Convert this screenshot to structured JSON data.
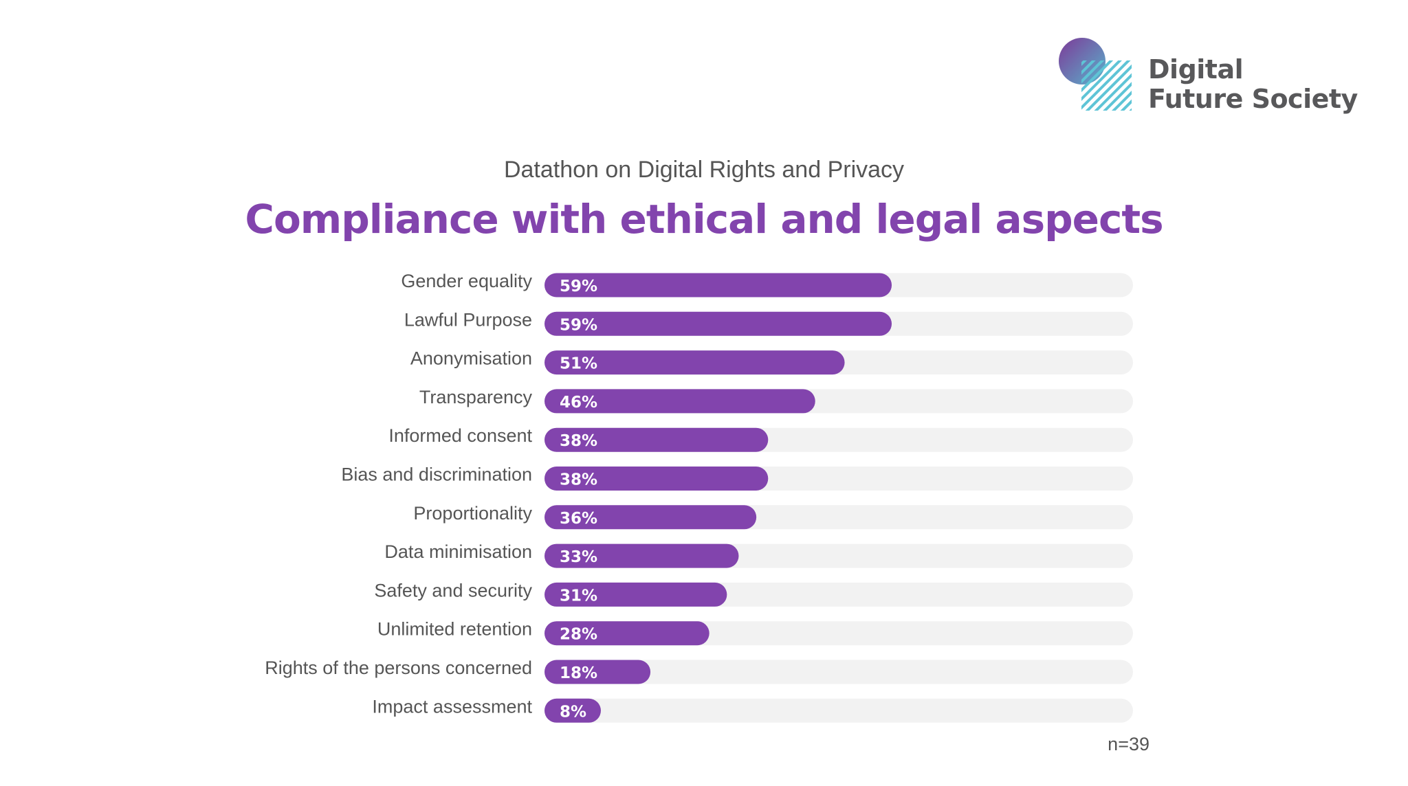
{
  "logo": {
    "line1": "Digital",
    "line2": "Future Society"
  },
  "subtitle": "Datathon on Digital Rights and Privacy",
  "title": "Compliance with ethical and legal aspects",
  "sample_size": "n=39",
  "colors": {
    "bar": "#8244ad",
    "track": "#f2f2f2",
    "label": "#555555",
    "title": "#8244ad"
  },
  "chart_data": {
    "type": "bar",
    "orientation": "horizontal",
    "title": "Compliance with ethical and legal aspects",
    "subtitle": "Datathon on Digital Rights and Privacy",
    "categories": [
      "Gender equality",
      "Lawful Purpose",
      "Anonymisation",
      "Transparency",
      "Informed consent",
      "Bias and discrimination",
      "Proportionality",
      "Data minimisation",
      "Safety and security",
      "Unlimited retention",
      "Rights of the persons concerned",
      "Impact assessment"
    ],
    "values": [
      59,
      59,
      51,
      46,
      38,
      38,
      36,
      33,
      31,
      28,
      18,
      8
    ],
    "data_labels": [
      "59%",
      "59%",
      "51%",
      "46%",
      "38%",
      "38%",
      "36%",
      "33%",
      "31%",
      "28%",
      "18%",
      "8%"
    ],
    "unit": "%",
    "xlim": [
      0,
      100
    ],
    "grid": false,
    "legend": "none",
    "note": "n=39"
  }
}
